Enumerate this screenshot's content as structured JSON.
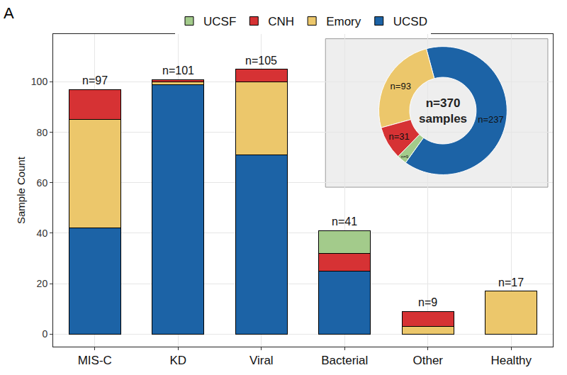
{
  "chart_data": {
    "type": "bar",
    "panel_label": "A",
    "y_label": "Sample Count",
    "categories": [
      "MIS-C",
      "KD",
      "Viral",
      "Bacterial",
      "Other",
      "Healthy"
    ],
    "series": [
      {
        "name": "UCSD",
        "color": "#1c63a6",
        "values": [
          42,
          99,
          71,
          25,
          0,
          0
        ]
      },
      {
        "name": "Emory",
        "color": "#ecc76b",
        "values": [
          43,
          1,
          29,
          0,
          3,
          17
        ]
      },
      {
        "name": "CNH",
        "color": "#d63234",
        "values": [
          12,
          1,
          5,
          7,
          6,
          0
        ]
      },
      {
        "name": "UCSF",
        "color": "#a3cb8b",
        "values": [
          0,
          0,
          0,
          9,
          0,
          0
        ]
      }
    ],
    "total_labels": [
      "n=97",
      "n=101",
      "n=105",
      "n=41",
      "n=9",
      "n=17"
    ],
    "stacked": true,
    "ylim": [
      -5,
      119
    ],
    "yticks": [
      0,
      20,
      40,
      60,
      80,
      100
    ],
    "grid": true,
    "legend": "top",
    "inset": {
      "type": "pie",
      "values": [
        237,
        93,
        31,
        9
      ],
      "value_labels": [
        "n=237",
        "n=93",
        "n=31",
        "n=9"
      ],
      "colors": [
        "#1c63a6",
        "#ecc76b",
        "#d63234",
        "#a3cb8b"
      ],
      "center_label": [
        "n=370",
        "samples"
      ]
    }
  }
}
